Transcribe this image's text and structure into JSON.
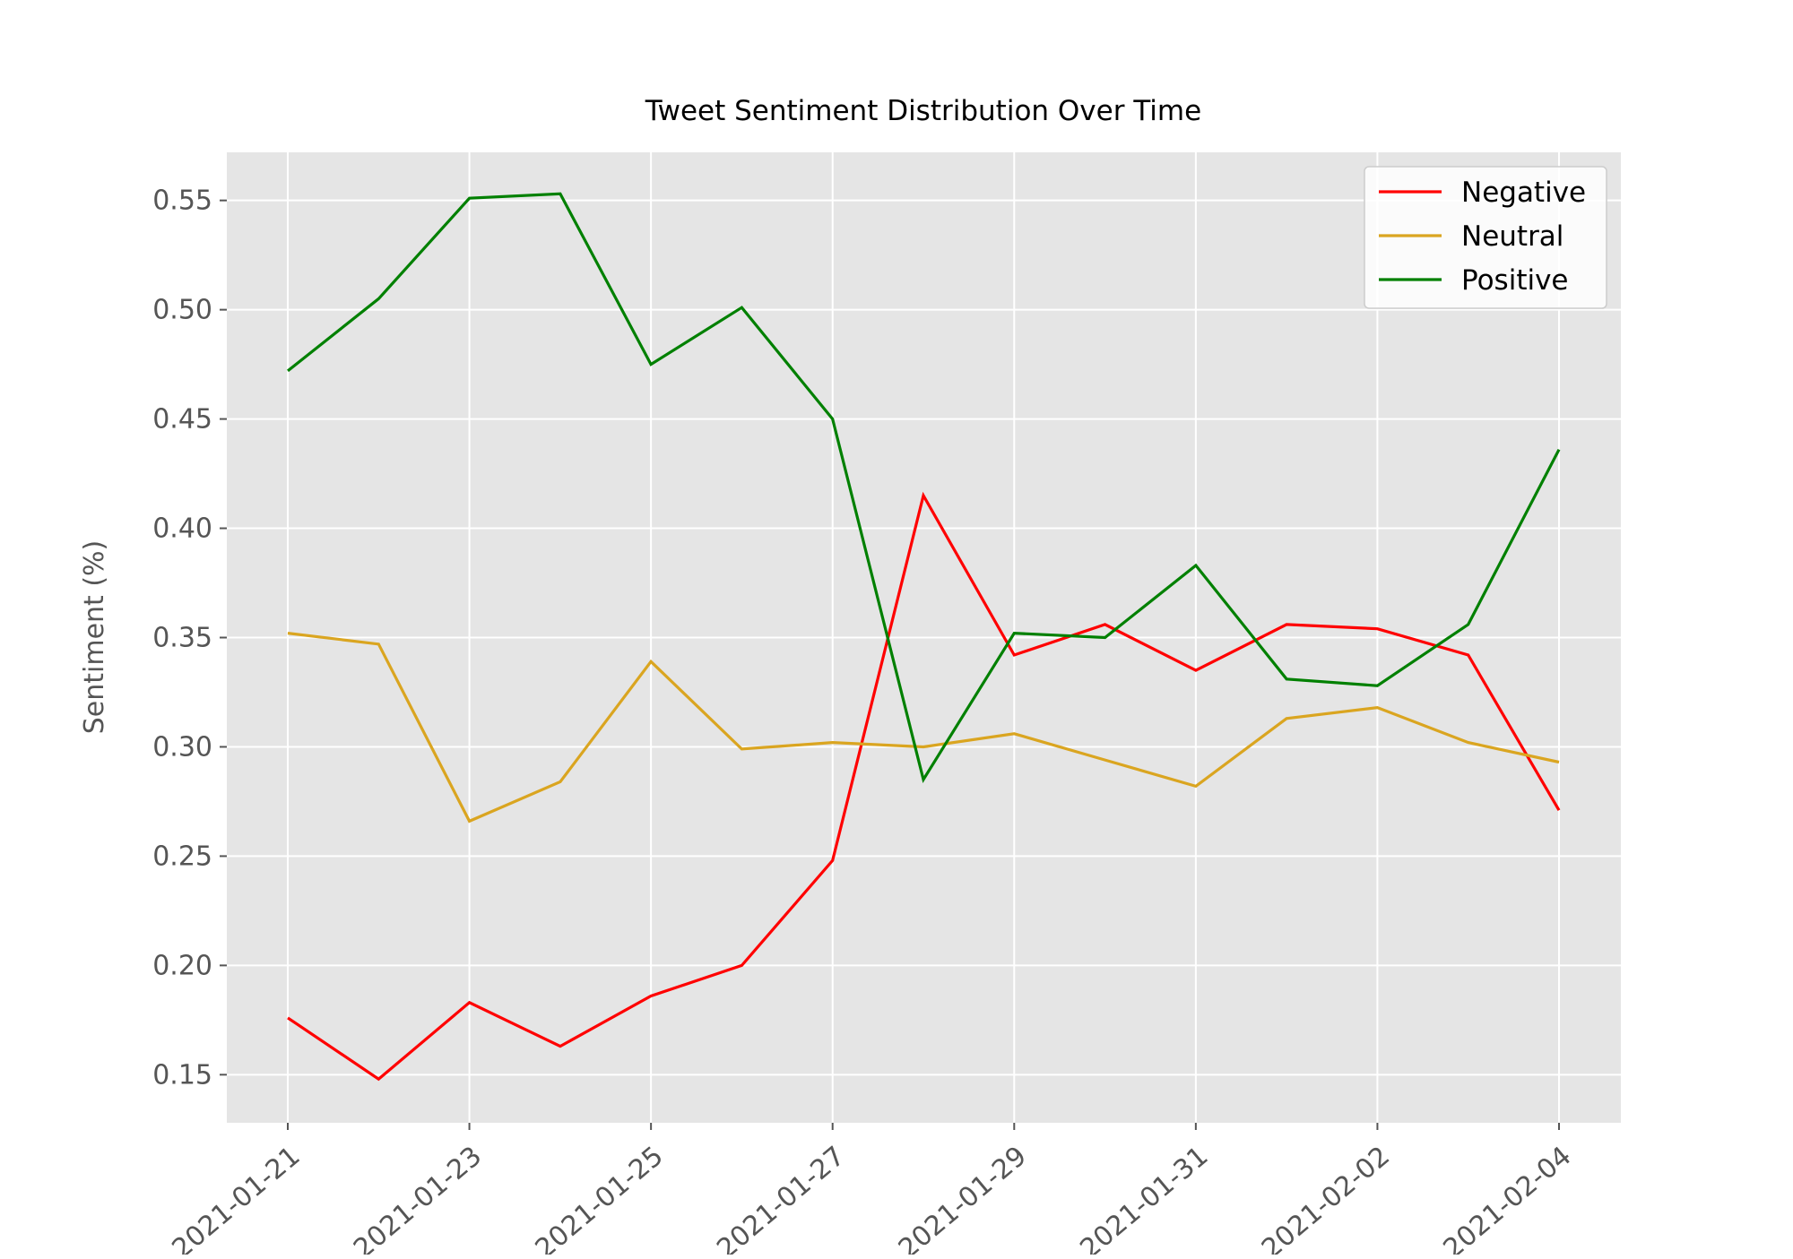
{
  "chart_data": {
    "type": "line",
    "title": "Tweet Sentiment Distribution Over Time",
    "xlabel": "",
    "ylabel": "Sentiment (%)",
    "x": [
      "2021-01-21",
      "2021-01-22",
      "2021-01-23",
      "2021-01-24",
      "2021-01-25",
      "2021-01-26",
      "2021-01-27",
      "2021-01-28",
      "2021-01-29",
      "2021-01-30",
      "2021-01-31",
      "2021-02-01",
      "2021-02-02",
      "2021-02-03",
      "2021-02-04"
    ],
    "x_ticks": [
      "2021-01-21",
      "2021-01-23",
      "2021-01-25",
      "2021-01-27",
      "2021-01-29",
      "2021-01-31",
      "2021-02-02",
      "2021-02-04"
    ],
    "y_ticks": [
      "0.15",
      "0.20",
      "0.25",
      "0.30",
      "0.35",
      "0.40",
      "0.45",
      "0.50",
      "0.55"
    ],
    "ylim": [
      0.128,
      0.572
    ],
    "grid": true,
    "legend_position": "top-right",
    "series": [
      {
        "name": "Negative",
        "color": "#ff0000",
        "values": [
          0.176,
          0.148,
          0.183,
          0.163,
          0.186,
          0.2,
          0.248,
          0.415,
          0.342,
          0.356,
          0.335,
          0.356,
          0.354,
          0.342,
          0.271
        ]
      },
      {
        "name": "Neutral",
        "color": "#daa520",
        "values": [
          0.352,
          0.347,
          0.266,
          0.284,
          0.339,
          0.299,
          0.302,
          0.3,
          0.306,
          0.294,
          0.282,
          0.313,
          0.318,
          0.302,
          0.293
        ]
      },
      {
        "name": "Positive",
        "color": "#008000",
        "values": [
          0.472,
          0.505,
          0.551,
          0.553,
          0.475,
          0.501,
          0.45,
          0.285,
          0.352,
          0.35,
          0.383,
          0.331,
          0.328,
          0.356,
          0.436
        ]
      }
    ]
  }
}
